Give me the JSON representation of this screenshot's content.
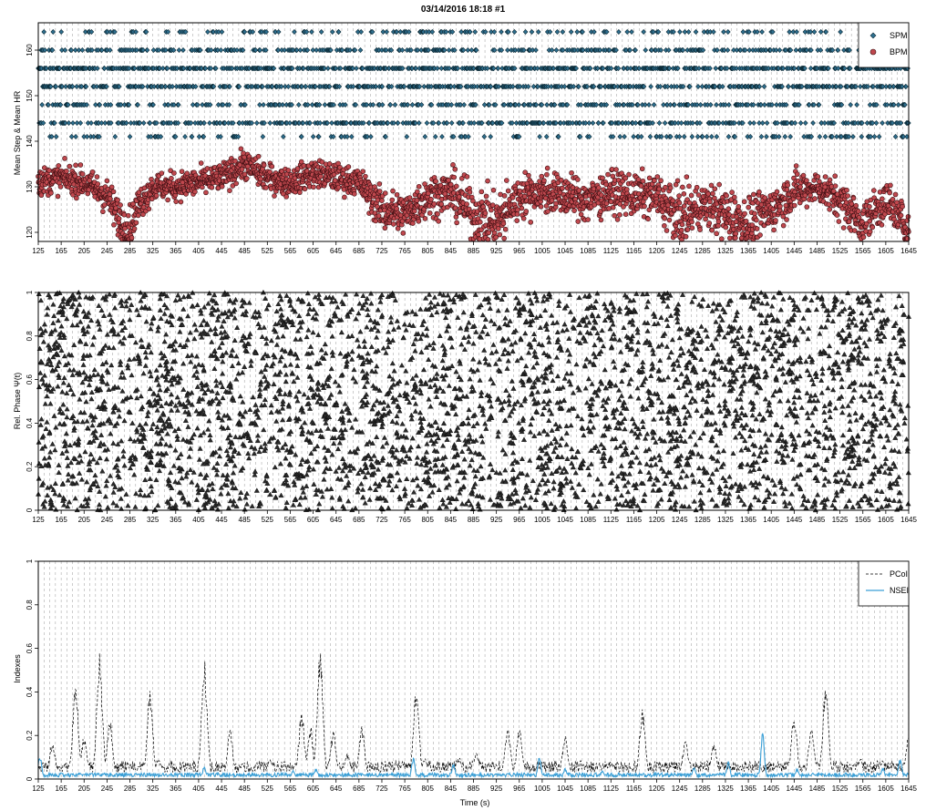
{
  "title": "03/14/2016 18:18 #1",
  "colors": {
    "spm": "#2f6f8f",
    "bpm": "#c0484e",
    "phase": "#2b2b2b",
    "pcoi": "#000000",
    "nsei": "#3a9fd6",
    "grid": "#9a9a9a"
  },
  "chart_data": [
    {
      "type": "scatter",
      "ylabel": "Mean Step & Mean HR",
      "xlim": [
        125,
        1645
      ],
      "ylim": [
        118,
        166
      ],
      "x_ticks": [
        125,
        165,
        205,
        245,
        285,
        325,
        365,
        405,
        445,
        485,
        525,
        565,
        605,
        645,
        685,
        725,
        765,
        805,
        845,
        885,
        925,
        965,
        1005,
        1045,
        1085,
        1125,
        1165,
        1205,
        1245,
        1285,
        1325,
        1365,
        1405,
        1445,
        1485,
        1525,
        1565,
        1605,
        1645
      ],
      "y_ticks": [
        120,
        130,
        140,
        150,
        160
      ],
      "grid": "vertical dashed",
      "legend": {
        "position": "top-right",
        "entries": [
          "SPM",
          "BPM"
        ]
      },
      "series": [
        {
          "name": "SPM",
          "marker": "diamond",
          "levels": [
            141,
            144,
            148,
            152,
            156,
            160,
            164
          ],
          "level_weights": [
            0.06,
            0.16,
            0.12,
            0.2,
            0.26,
            0.14,
            0.06
          ]
        },
        {
          "name": "BPM",
          "marker": "circle",
          "x": [
            125,
            165,
            205,
            245,
            270,
            285,
            300,
            325,
            365,
            405,
            445,
            485,
            525,
            565,
            605,
            645,
            685,
            725,
            765,
            805,
            845,
            885,
            925,
            965,
            1005,
            1045,
            1085,
            1125,
            1165,
            1205,
            1245,
            1285,
            1325,
            1365,
            1405,
            1445,
            1485,
            1525,
            1565,
            1605,
            1635,
            1645
          ],
          "y": [
            131,
            132,
            131,
            128,
            122,
            121,
            126,
            130,
            130,
            131,
            132,
            135,
            132,
            131,
            133,
            132,
            131,
            125,
            124,
            128,
            129,
            124,
            122,
            128,
            129,
            128,
            127,
            129,
            128,
            128,
            123,
            126,
            124,
            122,
            125,
            129,
            130,
            127,
            122,
            127,
            122,
            120
          ],
          "spread": [
            2,
            2,
            2,
            2.5,
            3,
            3,
            2.5,
            2,
            2,
            2,
            2,
            2,
            2,
            2,
            2,
            2,
            2,
            3,
            3,
            3,
            3,
            4,
            4,
            3,
            3,
            3,
            3,
            3,
            3,
            3,
            4,
            3,
            4,
            4,
            3,
            3,
            2,
            3,
            3,
            3,
            3,
            3
          ]
        }
      ]
    },
    {
      "type": "scatter",
      "ylabel": "Rel. Phase  Ψ(t)",
      "xlim": [
        125,
        1645
      ],
      "ylim": [
        0,
        1
      ],
      "x_ticks": [
        125,
        165,
        205,
        245,
        285,
        325,
        365,
        405,
        445,
        485,
        525,
        565,
        605,
        645,
        685,
        725,
        765,
        805,
        845,
        885,
        925,
        965,
        1005,
        1045,
        1085,
        1125,
        1165,
        1205,
        1245,
        1285,
        1325,
        1365,
        1405,
        1445,
        1485,
        1525,
        1565,
        1605,
        1645
      ],
      "y_ticks": [
        0,
        0.2,
        0.4,
        0.6,
        0.8,
        1
      ],
      "grid": "vertical dashed",
      "series": [
        {
          "marker": "triangle",
          "distribution": "uniform",
          "y_range": [
            0,
            1
          ],
          "points_per_second": 2.7
        }
      ]
    },
    {
      "type": "line",
      "ylabel": "Indexes",
      "xlabel": "Time (s)",
      "xlim": [
        125,
        1645
      ],
      "ylim": [
        0,
        1
      ],
      "x_ticks": [
        125,
        165,
        205,
        245,
        285,
        325,
        365,
        405,
        445,
        485,
        525,
        565,
        605,
        645,
        685,
        725,
        765,
        805,
        845,
        885,
        925,
        965,
        1005,
        1045,
        1085,
        1125,
        1165,
        1205,
        1245,
        1285,
        1325,
        1365,
        1405,
        1445,
        1485,
        1525,
        1565,
        1605,
        1645
      ],
      "y_ticks": [
        0,
        0.2,
        0.4,
        0.6,
        0.8,
        1
      ],
      "grid": "vertical dashed",
      "legend": {
        "position": "top-right",
        "entries": [
          "PCoI",
          "NSEI"
        ]
      },
      "series": [
        {
          "name": "PCoI",
          "style": "dashed",
          "baseline": 0.03,
          "peaks": [
            [
              150,
              0.18
            ],
            [
              190,
              0.44
            ],
            [
              205,
              0.2
            ],
            [
              232,
              0.59
            ],
            [
              250,
              0.28
            ],
            [
              320,
              0.42
            ],
            [
              335,
              0.1
            ],
            [
              415,
              0.57
            ],
            [
              460,
              0.23
            ],
            [
              530,
              0.1
            ],
            [
              585,
              0.32
            ],
            [
              600,
              0.25
            ],
            [
              617,
              0.61
            ],
            [
              640,
              0.22
            ],
            [
              665,
              0.12
            ],
            [
              690,
              0.25
            ],
            [
              785,
              0.42
            ],
            [
              800,
              0.1
            ],
            [
              860,
              0.1
            ],
            [
              890,
              0.12
            ],
            [
              945,
              0.24
            ],
            [
              965,
              0.24
            ],
            [
              1045,
              0.2
            ],
            [
              1120,
              0.06
            ],
            [
              1180,
              0.33
            ],
            [
              1255,
              0.18
            ],
            [
              1305,
              0.17
            ],
            [
              1445,
              0.31
            ],
            [
              1475,
              0.26
            ],
            [
              1500,
              0.44
            ],
            [
              1560,
              0.1
            ],
            [
              1645,
              0.2
            ]
          ]
        },
        {
          "name": "NSEI",
          "style": "solid",
          "baseline": 0.01,
          "peaks": [
            [
              128,
              0.11
            ],
            [
              165,
              0.03
            ],
            [
              240,
              0.03
            ],
            [
              415,
              0.06
            ],
            [
              570,
              0.04
            ],
            [
              610,
              0.05
            ],
            [
              780,
              0.1
            ],
            [
              850,
              0.07
            ],
            [
              1000,
              0.11
            ],
            [
              1045,
              0.05
            ],
            [
              1110,
              0.04
            ],
            [
              1270,
              0.06
            ],
            [
              1330,
              0.08
            ],
            [
              1390,
              0.22
            ],
            [
              1450,
              0.05
            ],
            [
              1600,
              0.05
            ],
            [
              1630,
              0.1
            ]
          ]
        }
      ]
    }
  ]
}
